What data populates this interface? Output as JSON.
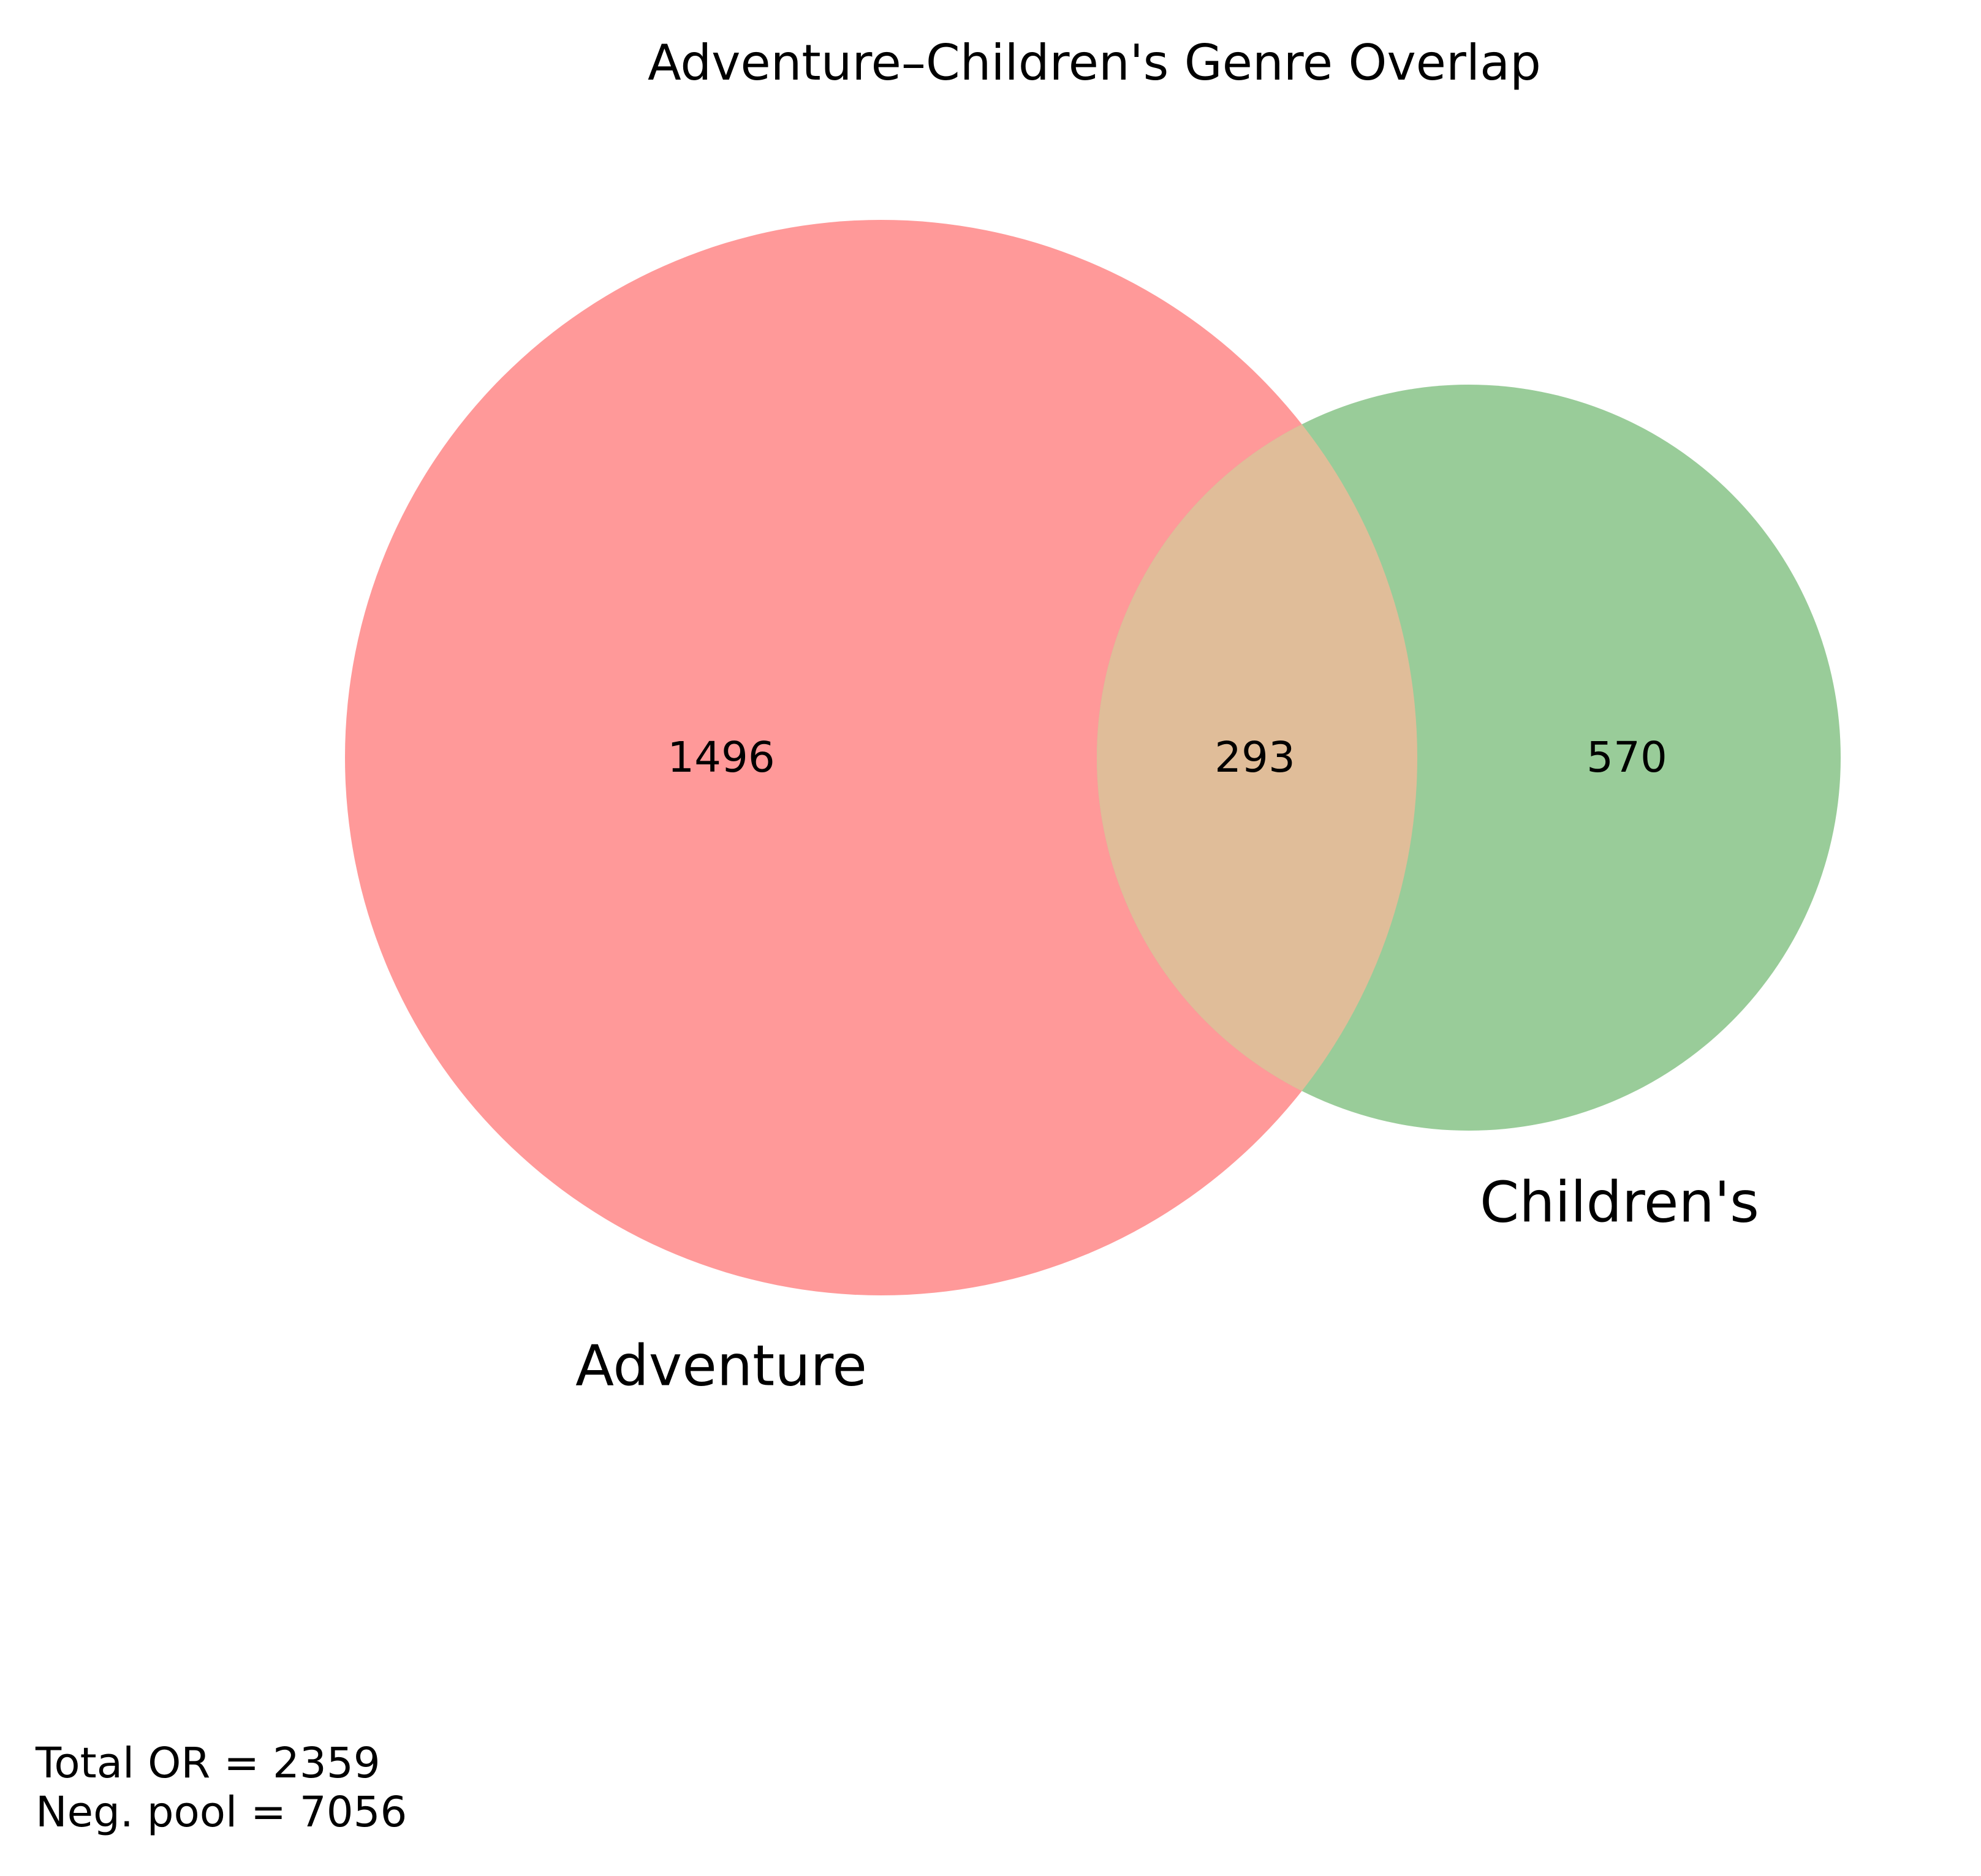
{
  "title": "Adventure–Children's Genre Overlap",
  "sets": [
    {
      "name": "Adventure",
      "only_count": "1496",
      "color": "#ff9999"
    },
    {
      "name": "Children's",
      "only_count": "570",
      "color": "#99cc99"
    }
  ],
  "intersection": {
    "count": "293",
    "color": "#e0bd99"
  },
  "footnote": {
    "line1": "Total OR = 2359",
    "line2": "Neg. pool = 7056"
  }
}
